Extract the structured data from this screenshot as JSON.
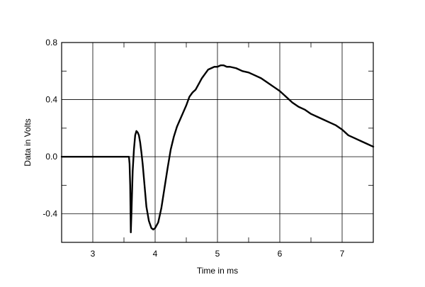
{
  "chart_data": {
    "type": "line",
    "xlabel": "Time in ms",
    "ylabel": "Data in Volts",
    "xlim": [
      2.5,
      7.5
    ],
    "ylim": [
      -0.6,
      0.8
    ],
    "xticks": [
      3,
      4,
      5,
      6,
      7
    ],
    "xtick_labels": [
      "3",
      "4",
      "5",
      "6",
      "7"
    ],
    "xminor": [
      2.5,
      3.5,
      4.5,
      5.5,
      6.5,
      7.5
    ],
    "yticks": [
      -0.4,
      0.0,
      0.4,
      0.8
    ],
    "ytick_labels": [
      "-0.4",
      "0.0",
      "0.4",
      "0.8"
    ],
    "yminor": [
      -0.6,
      -0.2,
      0.2,
      0.6
    ],
    "grid": true,
    "colors": {
      "line": "#000000",
      "grid": "#000000",
      "frame": "#000000"
    },
    "series": [
      {
        "x": [
          2.5,
          3.0,
          3.5,
          3.58,
          3.59,
          3.6,
          3.61,
          3.62,
          3.64,
          3.66,
          3.68,
          3.7,
          3.72,
          3.74,
          3.76,
          3.78,
          3.8,
          3.83,
          3.86,
          3.9,
          3.94,
          3.97,
          4.0,
          4.05,
          4.1,
          4.15,
          4.2,
          4.25,
          4.3,
          4.35,
          4.4,
          4.45,
          4.5,
          4.55,
          4.6,
          4.65,
          4.7,
          4.75,
          4.8,
          4.85,
          4.9,
          4.95,
          5.0,
          5.05,
          5.1,
          5.15,
          5.2,
          5.3,
          5.4,
          5.5,
          5.6,
          5.7,
          5.8,
          5.9,
          6.0,
          6.1,
          6.2,
          6.3,
          6.4,
          6.5,
          6.6,
          6.7,
          6.8,
          6.9,
          7.0,
          7.1,
          7.2,
          7.3,
          7.4,
          7.5
        ],
        "y": [
          0.0,
          0.0,
          0.0,
          0.0,
          -0.05,
          -0.2,
          -0.53,
          -0.4,
          -0.1,
          0.05,
          0.15,
          0.18,
          0.17,
          0.15,
          0.1,
          0.03,
          -0.05,
          -0.2,
          -0.35,
          -0.45,
          -0.5,
          -0.51,
          -0.5,
          -0.46,
          -0.36,
          -0.22,
          -0.08,
          0.05,
          0.14,
          0.21,
          0.26,
          0.31,
          0.36,
          0.42,
          0.45,
          0.47,
          0.51,
          0.55,
          0.58,
          0.61,
          0.62,
          0.63,
          0.63,
          0.64,
          0.64,
          0.63,
          0.63,
          0.62,
          0.6,
          0.59,
          0.57,
          0.55,
          0.52,
          0.49,
          0.46,
          0.42,
          0.38,
          0.35,
          0.33,
          0.3,
          0.28,
          0.26,
          0.24,
          0.22,
          0.19,
          0.15,
          0.13,
          0.11,
          0.09,
          0.07
        ]
      }
    ]
  }
}
